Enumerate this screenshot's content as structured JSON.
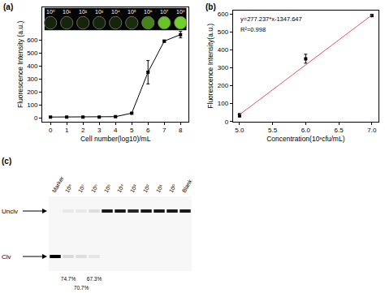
{
  "chart_data": [
    {
      "type": "line",
      "title": "(a)",
      "xlabel": "Cell number(log10)/mL",
      "ylabel": "Fluorescence Intensity (a.u.)",
      "x": [
        0,
        1,
        2,
        3,
        4,
        5,
        6,
        7,
        8
      ],
      "values": [
        5,
        5,
        5,
        5,
        8,
        35,
        350,
        590,
        640
      ],
      "errors": [
        2,
        2,
        2,
        2,
        3,
        6,
        90,
        8,
        25
      ],
      "color": "#000000",
      "marker": "square",
      "xlim": [
        -0.5,
        8.5
      ],
      "xticks": [
        0,
        1,
        2,
        3,
        4,
        5,
        6,
        7,
        8
      ],
      "ylim": [
        -30,
        850
      ],
      "yticks": [
        0,
        100,
        200,
        300,
        400,
        500,
        600
      ],
      "annotations": [
        "10⁰",
        "10¹",
        "10²",
        "10³",
        "10⁴",
        "10⁵",
        "10⁶",
        "10⁷",
        "10⁸"
      ]
    },
    {
      "type": "scatter",
      "title": "(b)",
      "xlabel": "Concentration(10ˣcfu/mL)",
      "ylabel": "Fluorescence Intensity(a.u.)",
      "series": [
        {
          "type": "scatter",
          "x": [
            5,
            6,
            7
          ],
          "values": [
            35,
            350,
            590
          ],
          "errors": [
            10,
            25,
            5
          ],
          "color": "#000000",
          "marker": "square"
        },
        {
          "type": "line",
          "x": [
            5,
            7
          ],
          "values": [
            38.5,
            593.0
          ],
          "color": "#e8574f"
        }
      ],
      "xlim": [
        4.9,
        7.1
      ],
      "xticks": [
        {
          "value": 5,
          "label": "5.0"
        },
        {
          "value": 5.5,
          "label": "5.5"
        },
        {
          "value": 6,
          "label": "6.0"
        },
        {
          "value": 6.5,
          "label": "6.5"
        },
        {
          "value": 7,
          "label": "7.0"
        }
      ],
      "ylim": [
        0,
        620
      ],
      "yticks": [
        0,
        100,
        200,
        300,
        400,
        500,
        600
      ],
      "annotations": [
        "y=277.237*x-1347.647",
        "R²=0.998"
      ]
    }
  ],
  "gel": {
    "title": "(c)",
    "lanes": [
      "Marker",
      "10⁸",
      "10⁷",
      "10⁶",
      "10⁵",
      "10⁴",
      "10³",
      "10²",
      "10¹",
      "10⁰",
      "Blank"
    ],
    "bands": [
      "Unclv",
      "Clv"
    ],
    "unclv": [
      0,
      0.06,
      0.06,
      0.1,
      0.9,
      0.9,
      0.85,
      0.9,
      0.9,
      0.9,
      0.9
    ],
    "clv": [
      1,
      0.12,
      0.1,
      0.07,
      0,
      0,
      0,
      0,
      0,
      0,
      0
    ],
    "lane_notes": [
      null,
      "74.7%",
      "70.7%",
      "67.3%",
      null,
      null,
      null,
      null,
      null,
      null,
      null
    ]
  }
}
